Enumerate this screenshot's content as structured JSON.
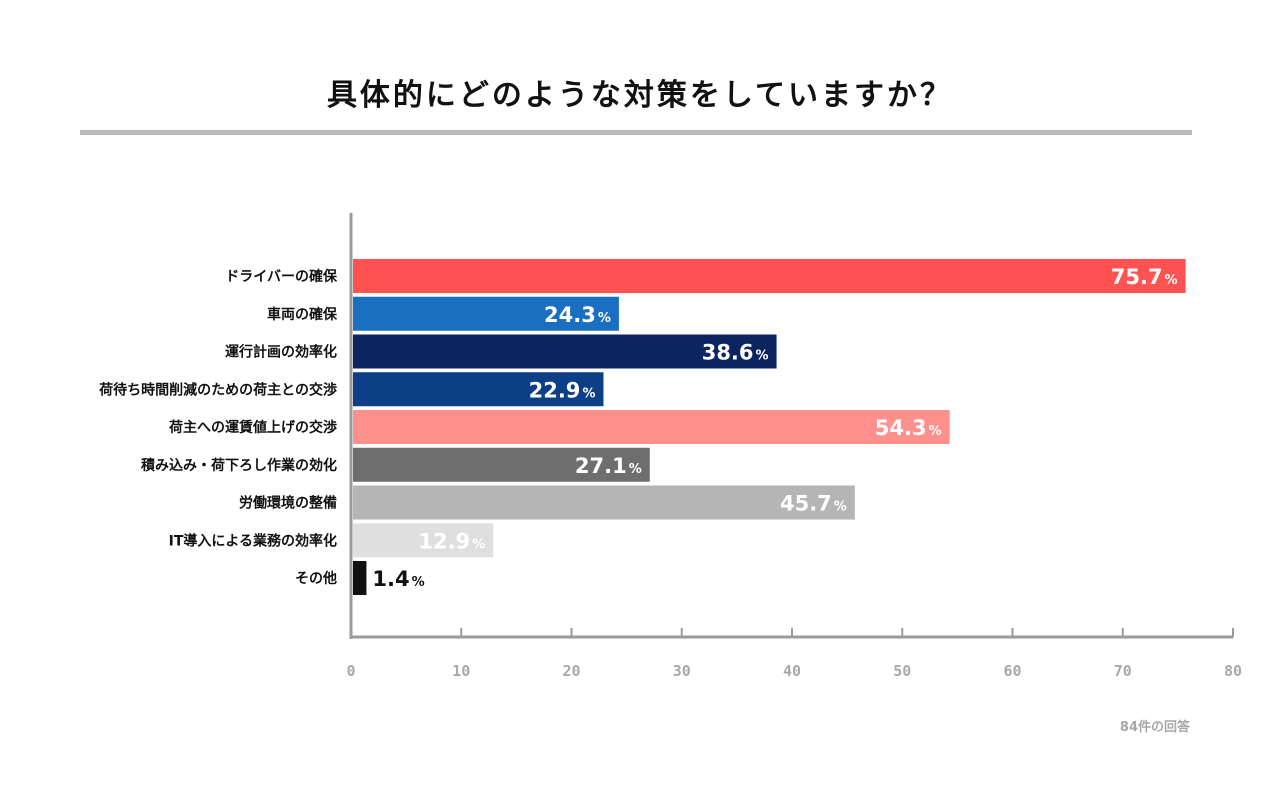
{
  "chart_data": {
    "type": "bar",
    "orientation": "horizontal",
    "title": "具体的にどのような対策をしていますか？",
    "categories": [
      "ドライバーの確保",
      "車両の確保",
      "運行計画の効率化",
      "荷待ち時間削減のための荷主との交渉",
      "荷主への運賃値上げの交渉",
      "積み込み・荷下ろし作業の効化",
      "労働環境の整備",
      "IT導入による業務の効率化",
      "その他"
    ],
    "values": [
      75.7,
      24.3,
      38.6,
      22.9,
      54.3,
      27.1,
      45.7,
      12.9,
      1.4
    ],
    "value_labels": [
      "75.7",
      "24.3",
      "38.6",
      "22.9",
      "54.3",
      "27.1",
      "45.7",
      "12.9",
      "1.4"
    ],
    "unit": "%",
    "bar_colors": [
      "#ff5252",
      "#1a6fc0",
      "#0c2460",
      "#0d3f86",
      "#ff908c",
      "#6e6e6e",
      "#b5b5b5",
      "#dfdfdf",
      "#111111"
    ],
    "label_colors": [
      "#ffffff",
      "#ffffff",
      "#ffffff",
      "#ffffff",
      "#ffffff",
      "#ffffff",
      "#ffffff",
      "#ffffff",
      "#111111"
    ],
    "xlim": [
      0,
      80
    ],
    "xticks": [
      0,
      10,
      20,
      30,
      40,
      50,
      60,
      70,
      80
    ],
    "xlabel": "",
    "ylabel": "",
    "grid": false,
    "footnote": "84件の回答"
  }
}
